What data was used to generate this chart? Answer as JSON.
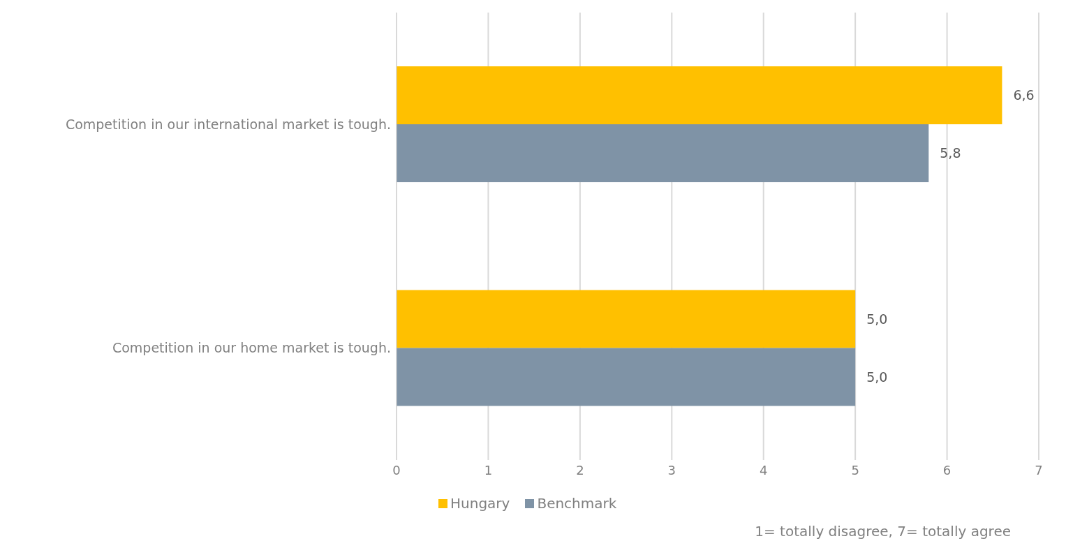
{
  "chart_data": {
    "type": "bar",
    "orientation": "horizontal",
    "categories": [
      "Competition in our international market is tough.",
      "Competition in our home market is tough."
    ],
    "series": [
      {
        "name": "Hungary",
        "color": "#ffc000",
        "values": [
          6.6,
          5.0
        ],
        "value_labels": [
          "6,6",
          "5,0"
        ]
      },
      {
        "name": "Benchmark",
        "color": "#7f93a6",
        "values": [
          5.8,
          5.0
        ],
        "value_labels": [
          "5,8",
          "5,0"
        ]
      }
    ],
    "xlim": [
      0,
      7
    ],
    "xticks": [
      0,
      1,
      2,
      3,
      4,
      5,
      6,
      7
    ],
    "grid": "x",
    "legend": "bottom",
    "annotations": [
      "1= totally disagree, 7= totally agree"
    ]
  }
}
